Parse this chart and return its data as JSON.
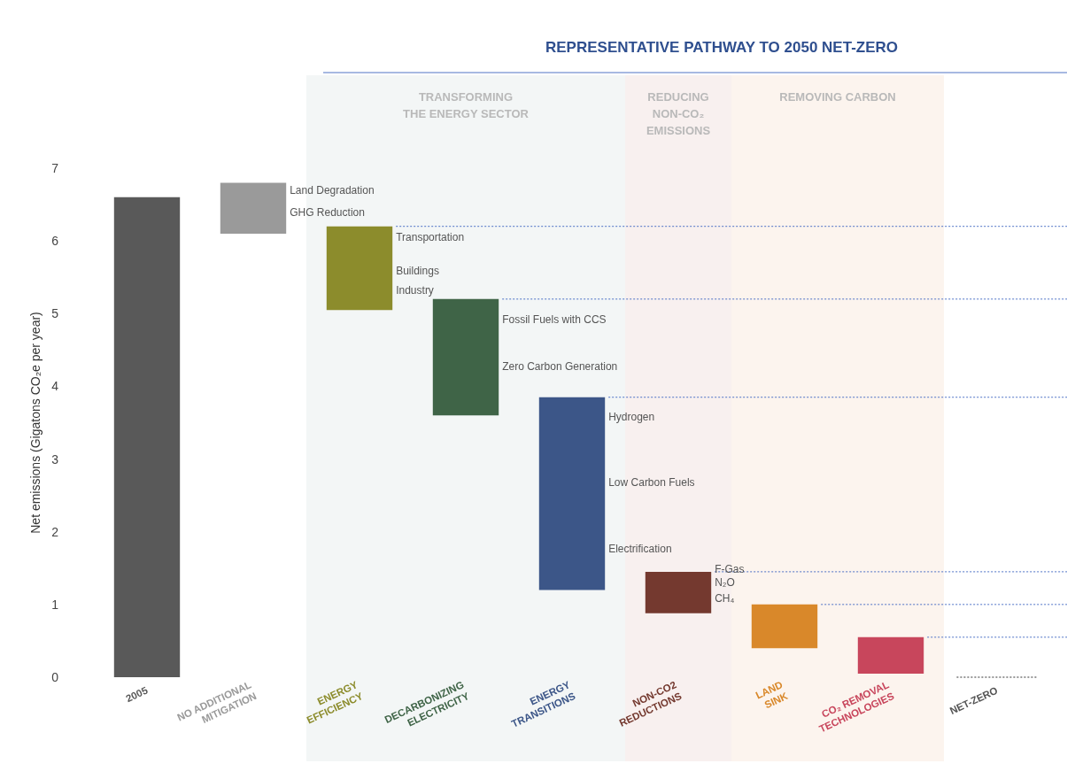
{
  "chart_data": {
    "type": "bar",
    "title": "REPRESENTATIVE PATHWAY TO 2050 NET-ZERO",
    "ylabel": "Net emissions (Gigatons CO₂e per year)",
    "categories": [
      "2005",
      "NO ADDITIONAL\nMITIGATION",
      "ENERGY\nEFFICIENCY",
      "DECARBONIZING\nELECTRICITY",
      "ENERGY\nTRANSITIONS",
      "NON-CO2\nREDUCTIONS",
      "LAND\nSINK",
      "CO₂ REMOVAL\nTECHNOLOGIES",
      "NET-ZERO"
    ],
    "base": [
      0,
      6.1,
      6.2,
      5.2,
      3.85,
      1.45,
      1.0,
      0.55,
      null
    ],
    "values": [
      6.6,
      0.7,
      -1.15,
      -1.6,
      -2.65,
      -0.57,
      -0.6,
      -0.5,
      null
    ],
    "colors": [
      "#595959",
      "#9a9a9a",
      "#8c8c2c",
      "#3f6447",
      "#3c5688",
      "#74392f",
      "#d9882a",
      "#c8465c",
      "#555555"
    ],
    "ylim": [
      0,
      7
    ],
    "yticks": [
      0,
      1,
      2,
      3,
      4,
      5,
      6,
      7
    ],
    "grid": false,
    "legend": false,
    "ref_lines": [
      {
        "axis": "y",
        "value": 6.2,
        "color": "#4a6fc4",
        "line_style": "dotted"
      },
      {
        "axis": "y",
        "value": 5.2,
        "color": "#4a6fc4",
        "line_style": "dotted"
      },
      {
        "axis": "y",
        "value": 3.85,
        "color": "#4a6fc4",
        "line_style": "dotted"
      },
      {
        "axis": "y",
        "value": 1.45,
        "color": "#4a6fc4",
        "line_style": "dotted"
      },
      {
        "axis": "y",
        "value": 1.0,
        "color": "#4a6fc4",
        "line_style": "dotted"
      },
      {
        "axis": "y",
        "value": 0.55,
        "color": "#4a6fc4",
        "line_style": "dotted"
      },
      {
        "axis": "y",
        "value": 0,
        "color": "#777777",
        "line_style": "dotted"
      }
    ],
    "bands": [
      {
        "axis": "x",
        "from": "ENERGY\nEFFICIENCY",
        "to": "ENERGY\nTRANSITIONS",
        "label": "TRANSFORMING\nTHE ENERGY SECTOR",
        "color": "#f3f6f6"
      },
      {
        "axis": "x",
        "from": "NON-CO2\nREDUCTIONS",
        "to": "NON-CO2\nREDUCTIONS",
        "label": "REDUCING\nNON-CO₂\nEMISSIONS",
        "color": "#f8f0ef"
      },
      {
        "axis": "x",
        "from": "LAND\nSINK",
        "to": "CO₂ REMOVAL\nTECHNOLOGIES",
        "label": "REMOVING CARBON",
        "color": "#fcf4ee"
      }
    ],
    "annotations": [
      "Land Degradation",
      "GHG Reduction",
      "Transportation",
      "Buildings",
      "Industry",
      "Fossil Fuels with CCS",
      "Zero Carbon Generation",
      "Hydrogen",
      "Low Carbon Fuels",
      "Electrification",
      "F-Gas",
      "N₂O",
      "CH₄"
    ]
  }
}
